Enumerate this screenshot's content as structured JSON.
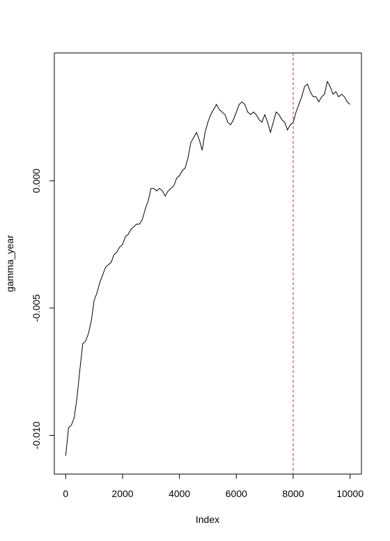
{
  "chart_data": {
    "type": "line",
    "x_label": "Index",
    "y_label": "gamma_year",
    "x": [
      0,
      100,
      200,
      300,
      400,
      500,
      600,
      700,
      800,
      900,
      1000,
      1100,
      1200,
      1300,
      1400,
      1500,
      1600,
      1700,
      1800,
      1900,
      2000,
      2100,
      2200,
      2300,
      2400,
      2500,
      2600,
      2700,
      2800,
      2900,
      3000,
      3100,
      3200,
      3300,
      3400,
      3500,
      3600,
      3700,
      3800,
      3900,
      4000,
      4100,
      4200,
      4300,
      4400,
      4500,
      4600,
      4700,
      4800,
      4900,
      5000,
      5100,
      5200,
      5300,
      5400,
      5500,
      5600,
      5700,
      5800,
      5900,
      6000,
      6100,
      6200,
      6300,
      6400,
      6500,
      6600,
      6700,
      6800,
      6900,
      7000,
      7100,
      7200,
      7300,
      7400,
      7500,
      7600,
      7700,
      7800,
      7900,
      8000,
      8100,
      8200,
      8300,
      8400,
      8500,
      8600,
      8700,
      8800,
      8900,
      9000,
      9100,
      9200,
      9300,
      9400,
      9500,
      9600,
      9700,
      9800,
      9900,
      10000
    ],
    "series": [
      {
        "name": "gamma_year",
        "color": "#000000",
        "values": [
          -0.0108,
          -0.0097,
          -0.0096,
          -0.0093,
          -0.0085,
          -0.0074,
          -0.0064,
          -0.0063,
          -0.006,
          -0.0055,
          -0.0047,
          -0.0044,
          -0.004,
          -0.0037,
          -0.0034,
          -0.0033,
          -0.0032,
          -0.0029,
          -0.0028,
          -0.0026,
          -0.0025,
          -0.0022,
          -0.0021,
          -0.0019,
          -0.0018,
          -0.0017,
          -0.0017,
          -0.0015,
          -0.0011,
          -0.0008,
          -0.0003,
          -0.0003,
          -0.0004,
          -0.0003,
          -0.0004,
          -0.0006,
          -0.0004,
          -0.0003,
          -0.0002,
          0.0001,
          0.0002,
          0.0004,
          0.0005,
          0.0009,
          0.0015,
          0.0017,
          0.0019,
          0.0016,
          0.0012,
          0.0019,
          0.0023,
          0.0026,
          0.0028,
          0.003,
          0.0028,
          0.0027,
          0.0026,
          0.0023,
          0.0022,
          0.0024,
          0.0027,
          0.003,
          0.0031,
          0.003,
          0.0027,
          0.0026,
          0.0027,
          0.0026,
          0.0024,
          0.0023,
          0.0026,
          0.0023,
          0.0019,
          0.0023,
          0.0027,
          0.0026,
          0.0024,
          0.0023,
          0.002,
          0.0022,
          0.0023,
          0.0027,
          0.003,
          0.0033,
          0.0037,
          0.0038,
          0.0035,
          0.0033,
          0.0033,
          0.0031,
          0.0033,
          0.0034,
          0.0039,
          0.0037,
          0.0034,
          0.0035,
          0.0033,
          0.0034,
          0.0033,
          0.0031,
          0.003
        ]
      }
    ],
    "xlim": [
      -400,
      10400
    ],
    "ylim": [
      -0.01152,
      0.00502
    ],
    "xticks": [
      0,
      2000,
      4000,
      6000,
      8000,
      10000
    ],
    "yticks": [
      {
        "value": -0.01,
        "label": "-0.010"
      },
      {
        "value": -0.005,
        "label": "-0.005"
      },
      {
        "value": 0,
        "label": "0.000"
      }
    ],
    "vline": {
      "x": 8000,
      "color": "#b03a2e"
    }
  }
}
